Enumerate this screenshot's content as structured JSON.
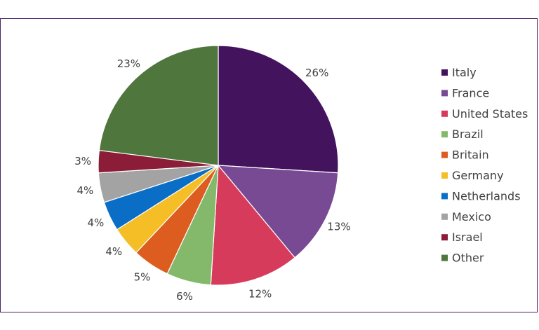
{
  "chart_data": {
    "type": "pie",
    "title": "",
    "legend_position": "right",
    "slices": [
      {
        "label": "Italy",
        "value": 26,
        "display": "26%",
        "color": "#43135d"
      },
      {
        "label": "France",
        "value": 13,
        "display": "13%",
        "color": "#774a93"
      },
      {
        "label": "United States",
        "value": 12,
        "display": "12%",
        "color": "#d73b5c"
      },
      {
        "label": "Brazil",
        "value": 6,
        "display": "6%",
        "color": "#84b96c"
      },
      {
        "label": "Britain",
        "value": 5,
        "display": "5%",
        "color": "#dc5d1f"
      },
      {
        "label": "Germany",
        "value": 4,
        "display": "4%",
        "color": "#f5be27"
      },
      {
        "label": "Netherlands",
        "value": 4,
        "display": "4%",
        "color": "#0a6ec6"
      },
      {
        "label": "Mexico",
        "value": 4,
        "display": "4%",
        "color": "#a3a3a3"
      },
      {
        "label": "Israel",
        "value": 3,
        "display": "3%",
        "color": "#8c1d38"
      },
      {
        "label": "Other",
        "value": 23,
        "display": "23%",
        "color": "#4f763c"
      }
    ]
  }
}
